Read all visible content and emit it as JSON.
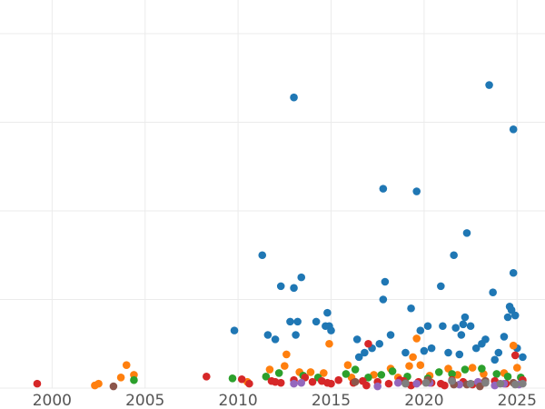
{
  "chart_data": {
    "type": "scatter",
    "title": "",
    "xlabel": "",
    "ylabel": "",
    "xlim": [
      1997.2,
      2026.5
    ],
    "ylim": [
      0,
      40
    ],
    "x_ticks": [
      2000,
      2005,
      2010,
      2015,
      2020,
      2025
    ],
    "x_tick_labels": [
      "2000",
      "2005",
      "2010",
      "2015",
      "2020",
      "2025"
    ],
    "y_gridlines": [
      0,
      10,
      20,
      30,
      40
    ],
    "grid": true,
    "legend": "none",
    "series": [
      {
        "color": "#1f77b4",
        "points": [
          [
            2009.8,
            6.5
          ],
          [
            2011.3,
            15
          ],
          [
            2011.6,
            6
          ],
          [
            2012.0,
            5.5
          ],
          [
            2012.3,
            11.5
          ],
          [
            2012.8,
            7.5
          ],
          [
            2013.0,
            11.3
          ],
          [
            2013.1,
            6
          ],
          [
            2013.4,
            12.5
          ],
          [
            2013.0,
            32.8
          ],
          [
            2013.2,
            7.5
          ],
          [
            2014.2,
            7.5
          ],
          [
            2014.7,
            7
          ],
          [
            2014.8,
            8.5
          ],
          [
            2014.9,
            7
          ],
          [
            2015.0,
            6.5
          ],
          [
            2016.4,
            5.5
          ],
          [
            2016.8,
            4
          ],
          [
            2017.2,
            4.5
          ],
          [
            2017.6,
            5
          ],
          [
            2017.8,
            10
          ],
          [
            2017.8,
            22.5
          ],
          [
            2017.9,
            12
          ],
          [
            2018.2,
            6
          ],
          [
            2019.0,
            4
          ],
          [
            2019.3,
            9
          ],
          [
            2019.6,
            22.2
          ],
          [
            2019.8,
            6.5
          ],
          [
            2020.2,
            7
          ],
          [
            2020.4,
            4.5
          ],
          [
            2020.9,
            11.5
          ],
          [
            2021.0,
            7
          ],
          [
            2021.3,
            4
          ],
          [
            2021.6,
            15
          ],
          [
            2021.7,
            6.8
          ],
          [
            2022.0,
            6
          ],
          [
            2022.1,
            7.2
          ],
          [
            2022.2,
            8
          ],
          [
            2022.3,
            17.5
          ],
          [
            2022.5,
            7
          ],
          [
            2022.8,
            4.5
          ],
          [
            2023.1,
            5
          ],
          [
            2023.3,
            5.5
          ],
          [
            2023.5,
            34.2
          ],
          [
            2023.7,
            10.8
          ],
          [
            2024.0,
            4
          ],
          [
            2024.3,
            5.8
          ],
          [
            2024.5,
            8
          ],
          [
            2024.6,
            9.2
          ],
          [
            2024.7,
            8.8
          ],
          [
            2024.8,
            13
          ],
          [
            2024.8,
            29.2
          ],
          [
            2024.9,
            8.2
          ],
          [
            2025.0,
            4.5
          ],
          [
            2025.3,
            3.5
          ],
          [
            2020.0,
            4.2
          ],
          [
            2016.5,
            3.5
          ],
          [
            2023.8,
            3.2
          ],
          [
            2021.9,
            3.8
          ]
        ]
      },
      {
        "color": "#ff7f0e",
        "points": [
          [
            2002.3,
            0.3
          ],
          [
            2002.5,
            0.5
          ],
          [
            2003.7,
            1.2
          ],
          [
            2004.0,
            2.6
          ],
          [
            2004.4,
            1.5
          ],
          [
            2010.5,
            0.7
          ],
          [
            2011.7,
            2.1
          ],
          [
            2012.5,
            2.5
          ],
          [
            2012.6,
            3.8
          ],
          [
            2013.3,
            1.8
          ],
          [
            2013.9,
            1.8
          ],
          [
            2014.6,
            1.7
          ],
          [
            2014.9,
            5
          ],
          [
            2015.9,
            2.6
          ],
          [
            2016.1,
            1.2
          ],
          [
            2017.3,
            1.5
          ],
          [
            2018.2,
            2.2
          ],
          [
            2018.6,
            1.2
          ],
          [
            2019.2,
            2.5
          ],
          [
            2019.4,
            3.5
          ],
          [
            2019.6,
            5.6
          ],
          [
            2019.8,
            2.6
          ],
          [
            2020.3,
            1.4
          ],
          [
            2021.3,
            2.2
          ],
          [
            2021.8,
            1.5
          ],
          [
            2022.6,
            2.3
          ],
          [
            2023.2,
            1.6
          ],
          [
            2024.3,
            1.7
          ],
          [
            2024.8,
            4.8
          ],
          [
            2025.0,
            2.3
          ]
        ]
      },
      {
        "color": "#2ca02c",
        "points": [
          [
            2004.4,
            0.9
          ],
          [
            2009.7,
            1.1
          ],
          [
            2011.5,
            1.3
          ],
          [
            2012.2,
            1.7
          ],
          [
            2013.5,
            1.4
          ],
          [
            2014.3,
            1.2
          ],
          [
            2015.8,
            1.6
          ],
          [
            2016.3,
            2.1
          ],
          [
            2017.0,
            1.2
          ],
          [
            2017.7,
            1.5
          ],
          [
            2018.3,
            1.9
          ],
          [
            2019.1,
            1.3
          ],
          [
            2020.2,
            1.1
          ],
          [
            2020.8,
            1.8
          ],
          [
            2021.5,
            1.6
          ],
          [
            2022.2,
            2.1
          ],
          [
            2023.1,
            2.2
          ],
          [
            2023.9,
            1.6
          ],
          [
            2024.5,
            1.3
          ],
          [
            2025.2,
            1.2
          ]
        ]
      },
      {
        "color": "#d62728",
        "points": [
          [
            1999.2,
            0.5
          ],
          [
            2008.3,
            1.3
          ],
          [
            2010.2,
            1.0
          ],
          [
            2010.6,
            0.5
          ],
          [
            2011.8,
            0.8
          ],
          [
            2012.0,
            0.7
          ],
          [
            2012.3,
            0.6
          ],
          [
            2013.0,
            0.9
          ],
          [
            2013.6,
            1.2
          ],
          [
            2014.0,
            0.7
          ],
          [
            2014.5,
            0.8
          ],
          [
            2015.0,
            0.5
          ],
          [
            2015.4,
            0.9
          ],
          [
            2016.2,
            0.6
          ],
          [
            2016.7,
            0.8
          ],
          [
            2017.0,
            5.0
          ],
          [
            2017.5,
            0.7
          ],
          [
            2018.1,
            0.5
          ],
          [
            2018.7,
            0.9
          ],
          [
            2019.3,
            0.3
          ],
          [
            2019.7,
            0.7
          ],
          [
            2020.4,
            0.6
          ],
          [
            2020.9,
            0.5
          ],
          [
            2021.5,
            0.9
          ],
          [
            2022.1,
            0.7
          ],
          [
            2022.6,
            0.4
          ],
          [
            2023.2,
            0.6
          ],
          [
            2023.8,
            0.8
          ],
          [
            2024.4,
            0.5
          ],
          [
            2024.9,
            3.7
          ],
          [
            2025.3,
            0.9
          ],
          [
            2018.9,
            0.8
          ],
          [
            2016.9,
            0.3
          ],
          [
            2014.8,
            0.6
          ],
          [
            2021.1,
            0.3
          ]
        ]
      },
      {
        "color": "#9467bd",
        "points": [
          [
            2013.0,
            0.5
          ],
          [
            2013.4,
            0.6
          ],
          [
            2017.5,
            0.2
          ],
          [
            2019.6,
            0.5
          ],
          [
            2020.3,
            0.6
          ],
          [
            2021.9,
            0.4
          ],
          [
            2022.9,
            0.7
          ],
          [
            2023.8,
            0.3
          ],
          [
            2024.3,
            0.5
          ],
          [
            2025.1,
            0.4
          ],
          [
            2018.6,
            0.6
          ]
        ]
      },
      {
        "color": "#8c564b",
        "points": [
          [
            2003.3,
            0.2
          ],
          [
            2016.3,
            0.7
          ],
          [
            2019.0,
            0.6
          ],
          [
            2020.2,
            0.9
          ],
          [
            2021.6,
            0.4
          ],
          [
            2022.3,
            0.4
          ],
          [
            2023.3,
            0.8
          ],
          [
            2024.8,
            0.6
          ],
          [
            2023.0,
            0.2
          ]
        ]
      },
      {
        "color": "#7f7f7f",
        "points": [
          [
            2019.0,
            0.5
          ],
          [
            2020.1,
            0.6
          ],
          [
            2021.5,
            0.8
          ],
          [
            2022.5,
            0.5
          ],
          [
            2023.3,
            0.6
          ],
          [
            2024.1,
            0.5
          ],
          [
            2024.9,
            0.4
          ],
          [
            2025.3,
            0.5
          ]
        ]
      }
    ]
  }
}
